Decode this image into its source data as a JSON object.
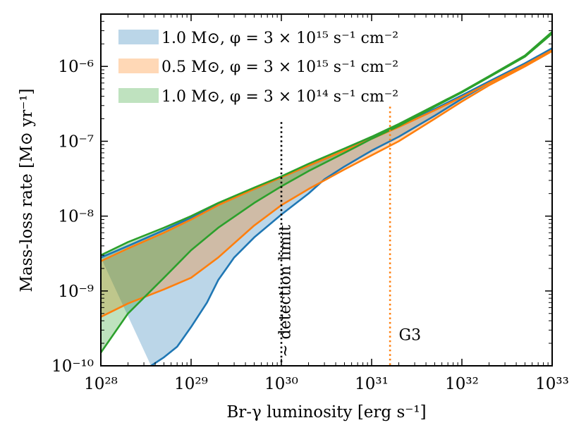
{
  "chart_data": {
    "type": "area",
    "xscale": "log",
    "yscale": "log",
    "xlim": [
      1e+28,
      1e+33
    ],
    "ylim": [
      1e-10,
      5e-06
    ],
    "xlabel": "Br-γ luminosity [erg s⁻¹]",
    "ylabel": "Mass-loss rate [M⊙ yr⁻¹]",
    "xticks": [
      {
        "value": 1e+28,
        "label": "10²⁸"
      },
      {
        "value": 1e+29,
        "label": "10²⁹"
      },
      {
        "value": 1e+30,
        "label": "10³⁰"
      },
      {
        "value": 1e+31,
        "label": "10³¹"
      },
      {
        "value": 1e+32,
        "label": "10³²"
      },
      {
        "value": 1e+33,
        "label": "10³³"
      }
    ],
    "yticks": [
      {
        "value": 1e-10,
        "label": "10⁻¹⁰"
      },
      {
        "value": 1e-09,
        "label": "10⁻⁹"
      },
      {
        "value": 1e-08,
        "label": "10⁻⁸"
      },
      {
        "value": 1e-07,
        "label": "10⁻⁷"
      },
      {
        "value": 1e-06,
        "label": "10⁻⁶"
      }
    ],
    "grid": false,
    "legend_position": "top-left",
    "series": [
      {
        "name": "1.0 M⊙, φ = 3 × 10¹⁵ s⁻¹ cm⁻²",
        "line_color": "#1f77b4",
        "fill_color": "#1f77b4",
        "upper": [
          [
            1e+28,
            2.8e-09
          ],
          [
            2e+28,
            4e-09
          ],
          [
            5e+28,
            6.5e-09
          ],
          [
            1e+29,
            9.5e-09
          ],
          [
            2e+29,
            1.45e-08
          ],
          [
            5e+29,
            2.3e-08
          ],
          [
            1e+30,
            3.3e-08
          ],
          [
            2e+30,
            4.7e-08
          ],
          [
            5e+30,
            7.5e-08
          ],
          [
            1e+31,
            1.1e-07
          ],
          [
            2e+31,
            1.6e-07
          ],
          [
            5e+31,
            2.7e-07
          ],
          [
            1e+32,
            4.1e-07
          ],
          [
            2e+32,
            6.3e-07
          ],
          [
            5e+32,
            1.1e-06
          ],
          [
            1e+33,
            1.75e-06
          ]
        ],
        "lower": [
          [
            3.6e+28,
            1e-10
          ],
          [
            5e+28,
            1.3e-10
          ],
          [
            7e+28,
            1.8e-10
          ],
          [
            1e+29,
            3.3e-10
          ],
          [
            1.5e+29,
            7e-10
          ],
          [
            2e+29,
            1.4e-09
          ],
          [
            3e+29,
            2.8e-09
          ],
          [
            5e+29,
            5.2e-09
          ],
          [
            1e+30,
            1.05e-08
          ],
          [
            2e+30,
            2e-08
          ],
          [
            3e+30,
            3.1e-08
          ],
          [
            5e+30,
            4.6e-08
          ],
          [
            1e+31,
            7.5e-08
          ],
          [
            2e+31,
            1.15e-07
          ],
          [
            5e+31,
            2.2e-07
          ],
          [
            1e+32,
            3.7e-07
          ],
          [
            2e+32,
            6e-07
          ],
          [
            5e+32,
            1.05e-06
          ],
          [
            1e+33,
            1.7e-06
          ]
        ]
      },
      {
        "name": "0.5 M⊙, φ = 3 × 10¹⁵ s⁻¹ cm⁻²",
        "line_color": "#ff7f0e",
        "fill_color": "#ff7f0e",
        "upper": [
          [
            1e+28,
            2.5e-09
          ],
          [
            2e+28,
            3.7e-09
          ],
          [
            5e+28,
            6e-09
          ],
          [
            1e+29,
            9e-09
          ],
          [
            2e+29,
            1.4e-08
          ],
          [
            5e+29,
            2.3e-08
          ],
          [
            1e+30,
            3.3e-08
          ],
          [
            2e+30,
            4.7e-08
          ],
          [
            5e+30,
            7.5e-08
          ],
          [
            1e+31,
            1.08e-07
          ],
          [
            2e+31,
            1.55e-07
          ],
          [
            5e+31,
            2.6e-07
          ],
          [
            1e+32,
            3.9e-07
          ],
          [
            2e+32,
            6e-07
          ],
          [
            5e+32,
            1.05e-06
          ],
          [
            1e+33,
            1.65e-06
          ]
        ],
        "lower": [
          [
            1e+28,
            4.5e-10
          ],
          [
            2e+28,
            6.8e-10
          ],
          [
            5e+28,
            1.05e-09
          ],
          [
            1e+29,
            1.5e-09
          ],
          [
            2e+29,
            2.8e-09
          ],
          [
            5e+29,
            7.5e-09
          ],
          [
            1e+30,
            1.4e-08
          ],
          [
            2e+30,
            2.3e-08
          ],
          [
            5e+30,
            4.2e-08
          ],
          [
            1e+31,
            6.5e-08
          ],
          [
            2e+31,
            1e-07
          ],
          [
            5e+31,
            2e-07
          ],
          [
            1e+32,
            3.4e-07
          ],
          [
            2e+32,
            5.6e-07
          ],
          [
            5e+32,
            1e-06
          ],
          [
            1e+33,
            1.6e-06
          ]
        ]
      },
      {
        "name": "1.0 M⊙, φ = 3 × 10¹⁴ s⁻¹ cm⁻²",
        "line_color": "#2ca02c",
        "fill_color": "#2ca02c",
        "upper": [
          [
            1e+28,
            3e-09
          ],
          [
            2e+28,
            4.5e-09
          ],
          [
            5e+28,
            7e-09
          ],
          [
            1e+29,
            1e-08
          ],
          [
            2e+29,
            1.5e-08
          ],
          [
            5e+29,
            2.4e-08
          ],
          [
            1e+30,
            3.4e-08
          ],
          [
            2e+30,
            5e-08
          ],
          [
            5e+30,
            8e-08
          ],
          [
            1e+31,
            1.15e-07
          ],
          [
            2e+31,
            1.7e-07
          ],
          [
            5e+31,
            3e-07
          ],
          [
            1e+32,
            4.6e-07
          ],
          [
            2e+32,
            7.4e-07
          ],
          [
            5e+32,
            1.4e-06
          ],
          [
            1e+33,
            2.9e-06
          ]
        ],
        "lower": [
          [
            1e+28,
            1.5e-10
          ],
          [
            2e+28,
            5e-10
          ],
          [
            5e+28,
            1.5e-09
          ],
          [
            1e+29,
            3.5e-09
          ],
          [
            2e+29,
            7e-09
          ],
          [
            5e+29,
            1.5e-08
          ],
          [
            1e+30,
            2.5e-08
          ],
          [
            2e+30,
            4e-08
          ],
          [
            5e+30,
            7e-08
          ],
          [
            1e+31,
            1.08e-07
          ],
          [
            2e+31,
            1.6e-07
          ],
          [
            5e+31,
            2.9e-07
          ],
          [
            1e+32,
            4.5e-07
          ],
          [
            2e+32,
            7.2e-07
          ],
          [
            5e+32,
            1.35e-06
          ],
          [
            1e+33,
            2.75e-06
          ]
        ]
      }
    ],
    "vlines": [
      {
        "x": 1e+30,
        "y_top": 1.8e-07,
        "color": "#000000",
        "style": "dotted"
      },
      {
        "x": 1.6e+31,
        "y_top": 2.9e-07,
        "color": "#ff7f0e",
        "style": "dotted"
      }
    ],
    "annotations": [
      {
        "text": "∼ detection limit",
        "x": 1.25e+30,
        "y": 1.3e-10,
        "rotation": -90
      },
      {
        "text": "G3",
        "x": 2e+31,
        "y": 2.2e-10
      }
    ]
  }
}
